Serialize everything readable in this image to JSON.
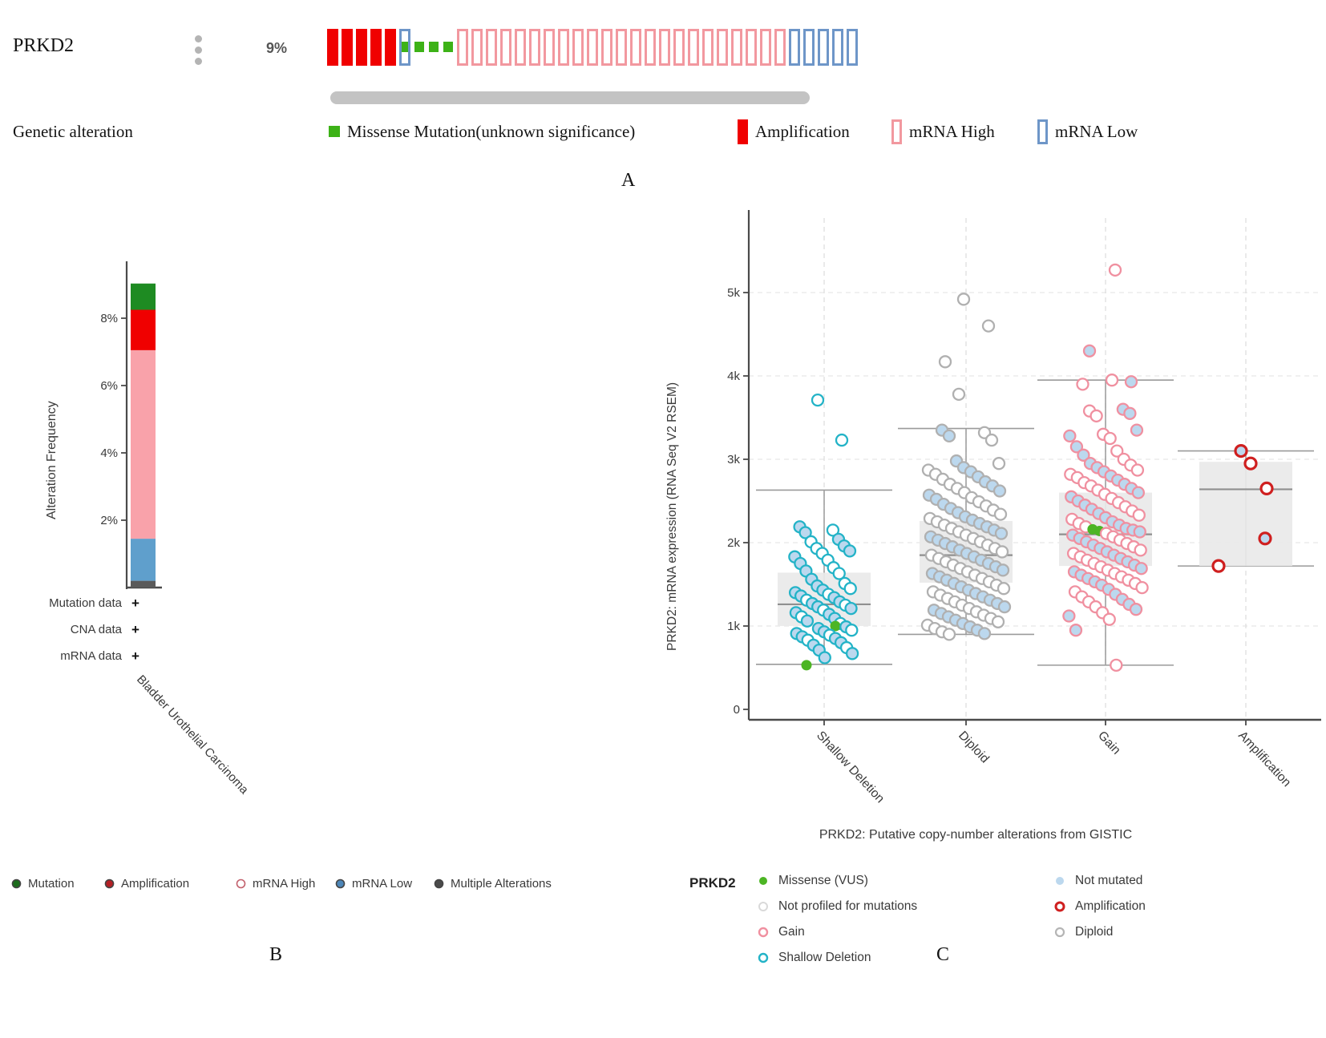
{
  "section_labels": {
    "a": "A",
    "b": "B",
    "c": "C"
  },
  "panel_a": {
    "gene": "PRKD2",
    "alteration_pct": "9%",
    "legend_title": "Genetic alteration",
    "track_segments": [
      {
        "type": "amplification",
        "count": 5
      },
      {
        "type": "mrna_low_missense",
        "count": 1
      },
      {
        "type": "missense",
        "count": 3
      },
      {
        "type": "mrna_high",
        "count": 23
      },
      {
        "type": "mrna_low",
        "count": 5
      }
    ],
    "legend": [
      {
        "label": "Missense Mutation(unknown significance)",
        "glyph": "missense_square"
      },
      {
        "label": "Amplification",
        "glyph": "amp_bar"
      },
      {
        "label": "mRNA High",
        "glyph": "mrna_high_bar"
      },
      {
        "label": "mRNA Low",
        "glyph": "mrna_low_bar"
      }
    ]
  },
  "panel_b": {
    "legend": [
      {
        "label": "Mutation",
        "fill": "#1c6b1c"
      },
      {
        "label": "Amplification",
        "fill": "#b42025"
      },
      {
        "label": "mRNA High",
        "fill": "#ffffff",
        "stroke": "#c2606c"
      },
      {
        "label": "mRNA Low",
        "fill": "#4d86b8"
      },
      {
        "label": "Multiple Alterations",
        "fill": "#4a4a4a"
      }
    ]
  },
  "panel_c": {
    "legend_gene": "PRKD2",
    "legend_col1": [
      {
        "label": "Missense (VUS)",
        "type": "missense"
      },
      {
        "label": "Not profiled for mutations",
        "type": "not_profiled"
      },
      {
        "label": "Gain",
        "type": "gain"
      },
      {
        "label": "Shallow Deletion",
        "type": "shallow"
      }
    ],
    "legend_col2": [
      {
        "label": "Not mutated",
        "type": "not_mutated"
      },
      {
        "label": "Amplification",
        "type": "amplification"
      },
      {
        "label": "Diploid",
        "type": "diploid"
      }
    ]
  },
  "colors": {
    "oncoprint": {
      "amplification": "#f00000",
      "mrna_high": "#f2989f",
      "mrna_low": "#6e96c8",
      "missense": "#3db217",
      "scrollbar": "#c3c3c3"
    },
    "scatter": {
      "shallow": "#23b3c7",
      "diploid": "#b0b0b0",
      "gain": "#f090a0",
      "amplification": "#cf1f1f",
      "not_mutated_fill": "#bcd8ee",
      "not_profiled_fill": "#ffffff",
      "missense_fill": "#4cb524",
      "box_fill": "#e9e9e9",
      "box_line": "#8f8f8f"
    }
  },
  "chart_data": [
    {
      "type": "bar",
      "title": "",
      "xlabel": "",
      "ylabel": "Alteration Frequency",
      "categories": [
        "Bladder Urothelial Carcinoma"
      ],
      "ylim": [
        0,
        9.7
      ],
      "yticks": [
        {
          "v": 2,
          "label": "2%"
        },
        {
          "v": 4,
          "label": "4%"
        },
        {
          "v": 6,
          "label": "6%"
        },
        {
          "v": 8,
          "label": "8%"
        }
      ],
      "series": [
        {
          "name": "Multiple Alterations",
          "color": "#5a5a5a",
          "values": [
            0.2
          ]
        },
        {
          "name": "mRNA Low",
          "color": "#5f9fcc",
          "values": [
            1.25
          ]
        },
        {
          "name": "mRNA High",
          "color": "#f9a2aa",
          "values": [
            5.6
          ]
        },
        {
          "name": "Amplification",
          "color": "#f00000",
          "values": [
            1.2
          ]
        },
        {
          "name": "Mutation",
          "color": "#1e8b22",
          "values": [
            0.78
          ]
        }
      ],
      "rows": [
        {
          "label": "Mutation data",
          "mark": "+"
        },
        {
          "label": "CNA data",
          "mark": "+"
        },
        {
          "label": "mRNA data",
          "mark": "+"
        }
      ]
    },
    {
      "type": "scatter",
      "title": "",
      "xlabel": "PRKD2: Putative copy-number alterations from GISTIC",
      "ylabel": "PRKD2: mRNA expression (RNA Seq V2 RSEM)",
      "ylim": [
        0,
        5900
      ],
      "yticks": [
        {
          "v": 0,
          "label": "0"
        },
        {
          "v": 1000,
          "label": "1k"
        },
        {
          "v": 2000,
          "label": "2k"
        },
        {
          "v": 3000,
          "label": "3k"
        },
        {
          "v": 4000,
          "label": "4k"
        },
        {
          "v": 5000,
          "label": "5k"
        }
      ],
      "categories": [
        "Shallow Deletion",
        "Diploid",
        "Gain",
        "Amplification"
      ],
      "boxes": [
        {
          "category": "Shallow Deletion",
          "low": 540,
          "q1": 1000,
          "median": 1260,
          "q3": 1640,
          "high": 2630
        },
        {
          "category": "Diploid",
          "low": 900,
          "q1": 1520,
          "median": 1850,
          "q3": 2260,
          "high": 3370
        },
        {
          "category": "Gain",
          "low": 530,
          "q1": 1720,
          "median": 2100,
          "q3": 2600,
          "high": 3950
        },
        {
          "category": "Amplification",
          "low": 1720,
          "q1": 1720,
          "median": 2640,
          "q3": 2970,
          "high": 3100
        }
      ],
      "points": {
        "Shallow Deletion": {
          "jitter_scale": 0.78,
          "dx_overrides": {
            "0": -8,
            "1": 22,
            "39": 14,
            "55": -22
          },
          "values": [
            3710,
            3230,
            2190,
            2150,
            2120,
            2040,
            2010,
            1960,
            1930,
            1900,
            1870,
            1830,
            1790,
            1750,
            1700,
            1660,
            1630,
            1560,
            1510,
            1480,
            1450,
            1430,
            1400,
            1380,
            1360,
            1340,
            1310,
            1290,
            1270,
            1250,
            1230,
            1210,
            1190,
            1160,
            1140,
            1110,
            1090,
            1060,
            1030,
            1000,
            990,
            970,
            950,
            930,
            910,
            890,
            870,
            850,
            830,
            800,
            770,
            740,
            710,
            670,
            620,
            530
          ],
          "fills": "wwbwbbwbwbwbwbwbwbwbwbbwbbwbbwbbwbbwbbwgbbwbbwbbwbbwbbbg"
        },
        "Diploid": {
          "jitter_scale": 1.0,
          "dx_overrides": {
            "0": -3,
            "1": 28,
            "2": -26,
            "3": -9
          },
          "values": [
            4920,
            4600,
            4170,
            3780,
            3350,
            3320,
            3280,
            3230,
            2980,
            2950,
            2900,
            2870,
            2850,
            2820,
            2790,
            2760,
            2730,
            2700,
            2680,
            2650,
            2620,
            2600,
            2570,
            2540,
            2520,
            2490,
            2460,
            2440,
            2410,
            2390,
            2360,
            2340,
            2310,
            2290,
            2270,
            2250,
            2230,
            2210,
            2190,
            2170,
            2150,
            2130,
            2110,
            2090,
            2070,
            2050,
            2030,
            2010,
            1990,
            1970,
            1950,
            1930,
            1910,
            1890,
            1870,
            1850,
            1830,
            1810,
            1790,
            1770,
            1750,
            1730,
            1710,
            1690,
            1670,
            1650,
            1630,
            1610,
            1590,
            1570,
            1550,
            1530,
            1510,
            1490,
            1470,
            1450,
            1430,
            1410,
            1390,
            1370,
            1350,
            1330,
            1310,
            1290,
            1270,
            1250,
            1230,
            1210,
            1190,
            1170,
            1150,
            1130,
            1110,
            1090,
            1070,
            1050,
            1030,
            1010,
            990,
            970,
            950,
            930,
            910,
            900
          ],
          "fills": "wwwwbwbwbwbwbwbwbwbwbwbwbwbwbwbwbwbwbwbwbwbwbwbwbwbwbwbwbwbwbwbwbwbwbwbwbwbwbwbwbwbwbwbwbwbwbwbwbwbwbwbw"
        },
        "Gain": {
          "jitter_scale": 0.95,
          "dx_overrides": {
            "0": 12,
            "1": -20,
            "2": 8,
            "3": 32
          },
          "values": [
            5270,
            4300,
            3950,
            3930,
            3900,
            3600,
            3580,
            3550,
            3520,
            3350,
            3300,
            3280,
            3250,
            3150,
            3100,
            3050,
            3000,
            2950,
            2930,
            2900,
            2870,
            2850,
            2820,
            2800,
            2780,
            2750,
            2720,
            2700,
            2680,
            2650,
            2630,
            2600,
            2580,
            2550,
            2530,
            2500,
            2480,
            2450,
            2430,
            2400,
            2380,
            2350,
            2330,
            2300,
            2280,
            2250,
            2230,
            2210,
            2190,
            2170,
            2160,
            2150,
            2140,
            2130,
            2110,
            2090,
            2070,
            2050,
            2030,
            2010,
            1990,
            1970,
            1950,
            1930,
            1910,
            1890,
            1870,
            1850,
            1830,
            1810,
            1790,
            1770,
            1750,
            1730,
            1710,
            1690,
            1670,
            1650,
            1630,
            1610,
            1590,
            1570,
            1550,
            1530,
            1510,
            1490,
            1460,
            1440,
            1410,
            1380,
            1350,
            1320,
            1290,
            1260,
            1230,
            1200,
            1160,
            1120,
            1080,
            950,
            530
          ],
          "fills": "wbwbwbwbwbwbwbwbwbwbwbwbwbwbwbwbwbwbwbwbwbwbwbwbwbgbgbwbwbwbwbwbwbwbwbwbwbwbwbwbwbwbwbwbwbwbwbwbwbwbw"
        },
        "Amplification": {
          "values": [
            3100,
            2950,
            2650,
            2050,
            1720
          ],
          "fills": "bwwbw",
          "dx": [
            -6,
            6,
            26,
            24,
            -34
          ]
        }
      }
    }
  ]
}
